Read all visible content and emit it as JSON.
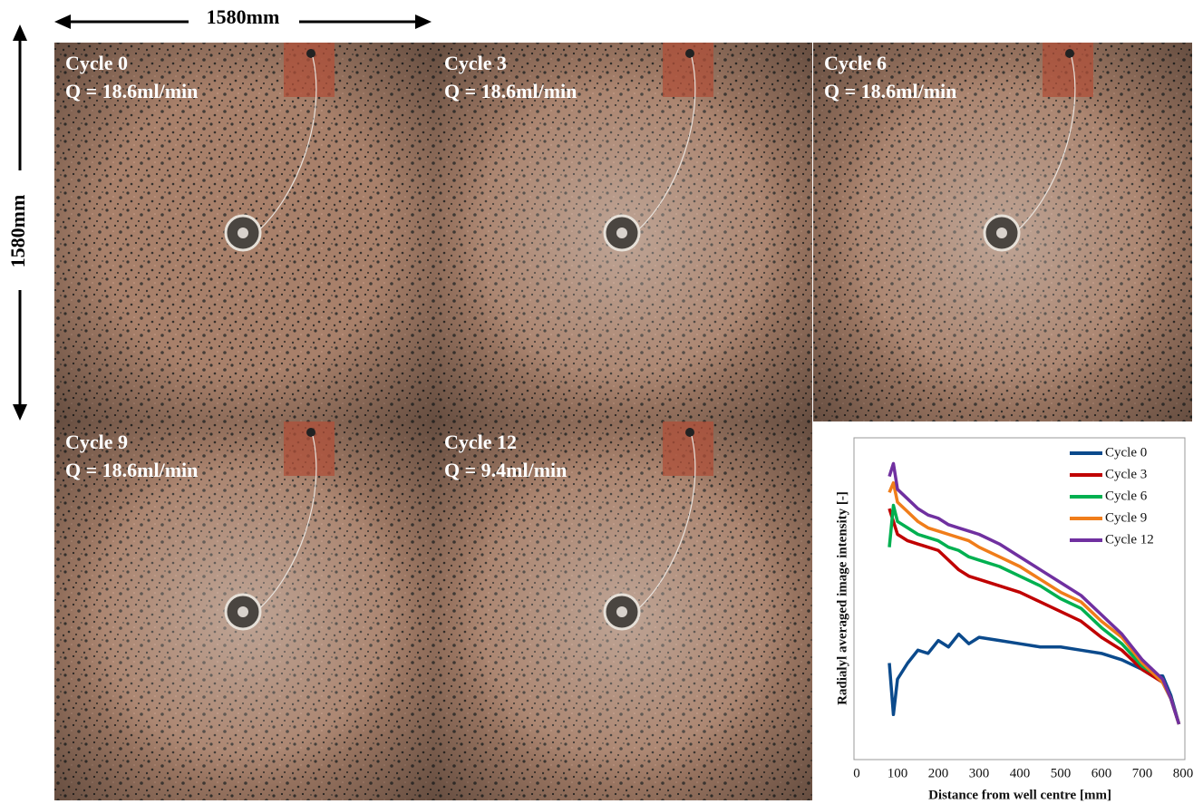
{
  "width_label": "1580mm",
  "height_label": "1580mm",
  "panels": [
    {
      "cycle": "Cycle 0",
      "flow": "Q = 18.6ml/min"
    },
    {
      "cycle": "Cycle 3",
      "flow": "Q = 18.6ml/min"
    },
    {
      "cycle": "Cycle 6",
      "flow": "Q = 18.6ml/min"
    },
    {
      "cycle": "Cycle 9",
      "flow": "Q = 18.6ml/min"
    },
    {
      "cycle": "Cycle 12",
      "flow": "Q = 9.4ml/min"
    }
  ],
  "chart_data": {
    "type": "line",
    "x_label": "Distance from well centre [mm]",
    "y_label": "Radialyl averaged image intensity [-]",
    "xlim": [
      0,
      800
    ],
    "xticks": [
      0,
      100,
      200,
      300,
      400,
      500,
      600,
      700,
      800
    ],
    "ylim": [
      0,
      1
    ],
    "legend": "upper right",
    "x": [
      80,
      90,
      100,
      125,
      150,
      175,
      200,
      225,
      250,
      275,
      300,
      350,
      400,
      450,
      500,
      550,
      600,
      650,
      700,
      725,
      750,
      770,
      790
    ],
    "series": [
      {
        "name": "Cycle 0",
        "color": "#0b4a8c",
        "values": [
          0.3,
          0.14,
          0.25,
          0.3,
          0.34,
          0.33,
          0.37,
          0.35,
          0.39,
          0.36,
          0.38,
          0.37,
          0.36,
          0.35,
          0.35,
          0.34,
          0.33,
          0.31,
          0.28,
          0.26,
          0.26,
          0.2,
          0.11
        ]
      },
      {
        "name": "Cycle 3",
        "color": "#c00000",
        "values": [
          0.78,
          0.74,
          0.7,
          0.68,
          0.67,
          0.66,
          0.65,
          0.62,
          0.59,
          0.57,
          0.56,
          0.54,
          0.52,
          0.49,
          0.46,
          0.43,
          0.38,
          0.34,
          0.28,
          0.26,
          0.24,
          0.19,
          0.11
        ]
      },
      {
        "name": "Cycle 6",
        "color": "#00b050",
        "values": [
          0.66,
          0.79,
          0.74,
          0.72,
          0.7,
          0.69,
          0.68,
          0.66,
          0.65,
          0.63,
          0.62,
          0.6,
          0.57,
          0.54,
          0.5,
          0.47,
          0.41,
          0.36,
          0.29,
          0.27,
          0.24,
          0.19,
          0.11
        ]
      },
      {
        "name": "Cycle 9",
        "color": "#f07d1a",
        "values": [
          0.83,
          0.86,
          0.8,
          0.77,
          0.74,
          0.72,
          0.71,
          0.7,
          0.69,
          0.68,
          0.66,
          0.63,
          0.6,
          0.56,
          0.52,
          0.49,
          0.43,
          0.38,
          0.3,
          0.27,
          0.24,
          0.19,
          0.11
        ]
      },
      {
        "name": "Cycle 12",
        "color": "#7030a0",
        "values": [
          0.88,
          0.92,
          0.84,
          0.81,
          0.78,
          0.76,
          0.75,
          0.73,
          0.72,
          0.71,
          0.7,
          0.67,
          0.63,
          0.59,
          0.55,
          0.51,
          0.45,
          0.39,
          0.31,
          0.28,
          0.25,
          0.19,
          0.11
        ]
      }
    ]
  }
}
